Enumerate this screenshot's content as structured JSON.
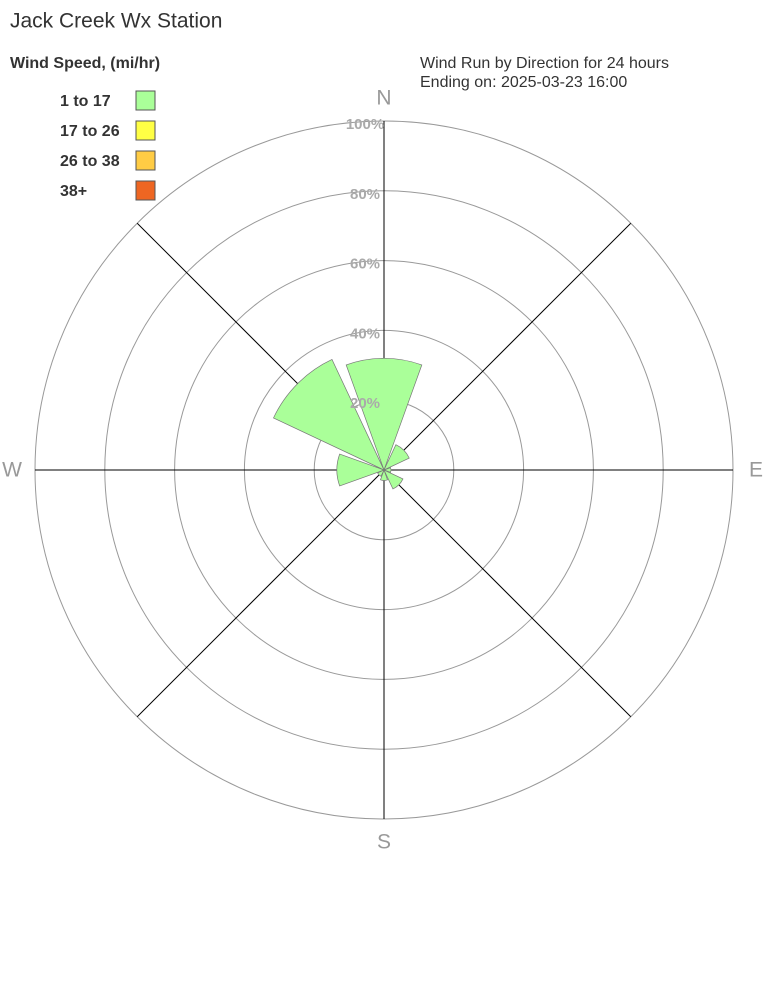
{
  "chart_data": {
    "type": "windrose",
    "title": "Jack Creek Wx Station",
    "subtitle": [
      "Wind Run by Direction for 24 hours",
      "Ending on: 2025-03-23 16:00"
    ],
    "legend_title": "Wind Speed, (mi/hr)",
    "categories": [
      "N",
      null,
      "E",
      null,
      "S",
      null,
      "W",
      null
    ],
    "series": [
      {
        "name": "1 to 17",
        "color": "#aaff99",
        "values": [
          32,
          8,
          2,
          6,
          3,
          2,
          13.5,
          35
        ]
      },
      {
        "name": "17 to 26",
        "color": "#ffff44",
        "values": [
          0,
          0,
          0,
          0,
          0,
          0,
          0,
          0
        ]
      },
      {
        "name": "26 to 38",
        "color": "#ffcc44",
        "values": [
          0,
          0,
          0,
          0,
          0,
          0,
          0,
          0
        ]
      },
      {
        "name": "38+",
        "color": "#ee6622",
        "values": [
          0,
          0,
          0,
          0,
          0,
          0,
          0,
          0
        ]
      }
    ],
    "ylim": [
      0,
      100
    ],
    "yticks": [
      {
        "value": 20,
        "label": "20%"
      },
      {
        "value": 40,
        "label": "40%"
      },
      {
        "value": 60,
        "label": "60%"
      },
      {
        "value": 80,
        "label": "80%"
      },
      {
        "value": 100,
        "label": "100%"
      }
    ]
  }
}
